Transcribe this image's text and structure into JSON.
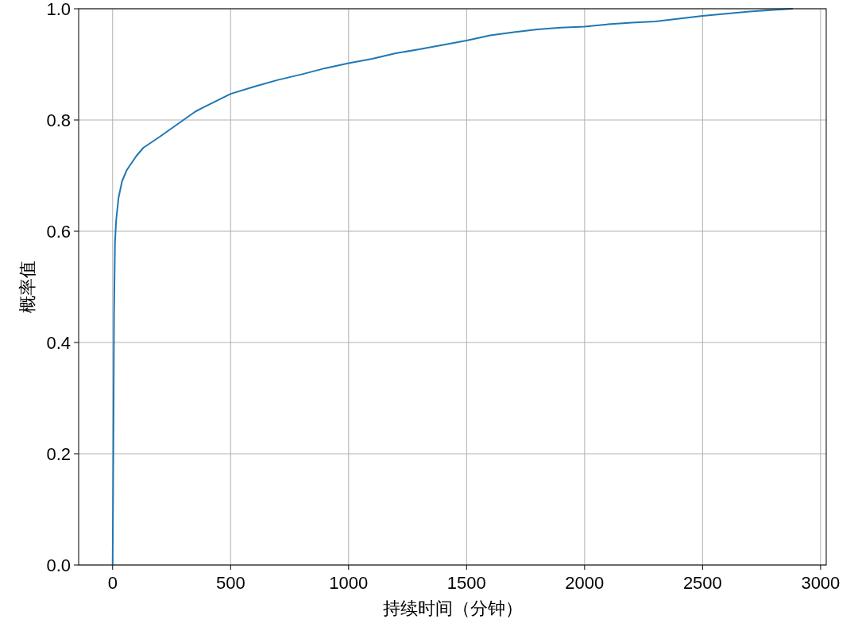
{
  "chart_data": {
    "type": "line",
    "xlabel": "持续时间（分钟）",
    "ylabel": "概率值",
    "xlim": [
      -144,
      3024
    ],
    "ylim": [
      0,
      1
    ],
    "xticks": [
      0,
      500,
      1000,
      1500,
      2000,
      2500,
      3000
    ],
    "yticks": [
      {
        "value": 0,
        "label": "0.0"
      },
      {
        "value": 0.2,
        "label": "0.2"
      },
      {
        "value": 0.4,
        "label": "0.4"
      },
      {
        "value": 0.6,
        "label": "0.6"
      },
      {
        "value": 0.8,
        "label": "0.8"
      },
      {
        "value": 1,
        "label": "1.0"
      }
    ],
    "grid": true,
    "line_style": "solid",
    "marker": "none",
    "series": [
      {
        "color": "#1f77b4",
        "x": [
          0,
          3,
          6,
          10,
          15,
          25,
          40,
          60,
          100,
          130,
          200,
          300,
          350,
          400,
          500,
          600,
          700,
          800,
          900,
          1000,
          1100,
          1200,
          1300,
          1400,
          1500,
          1600,
          1700,
          1800,
          1900,
          2000,
          2100,
          2200,
          2300,
          2400,
          2500,
          2600,
          2700,
          2800,
          2880
        ],
        "values": [
          0,
          0.2,
          0.45,
          0.58,
          0.62,
          0.66,
          0.69,
          0.71,
          0.735,
          0.75,
          0.77,
          0.8,
          0.815,
          0.826,
          0.847,
          0.86,
          0.872,
          0.882,
          0.893,
          0.902,
          0.91,
          0.92,
          0.927,
          0.935,
          0.943,
          0.952,
          0.958,
          0.963,
          0.966,
          0.968,
          0.972,
          0.975,
          0.977,
          0.982,
          0.987,
          0.991,
          0.995,
          0.998,
          1.0
        ]
      }
    ]
  }
}
